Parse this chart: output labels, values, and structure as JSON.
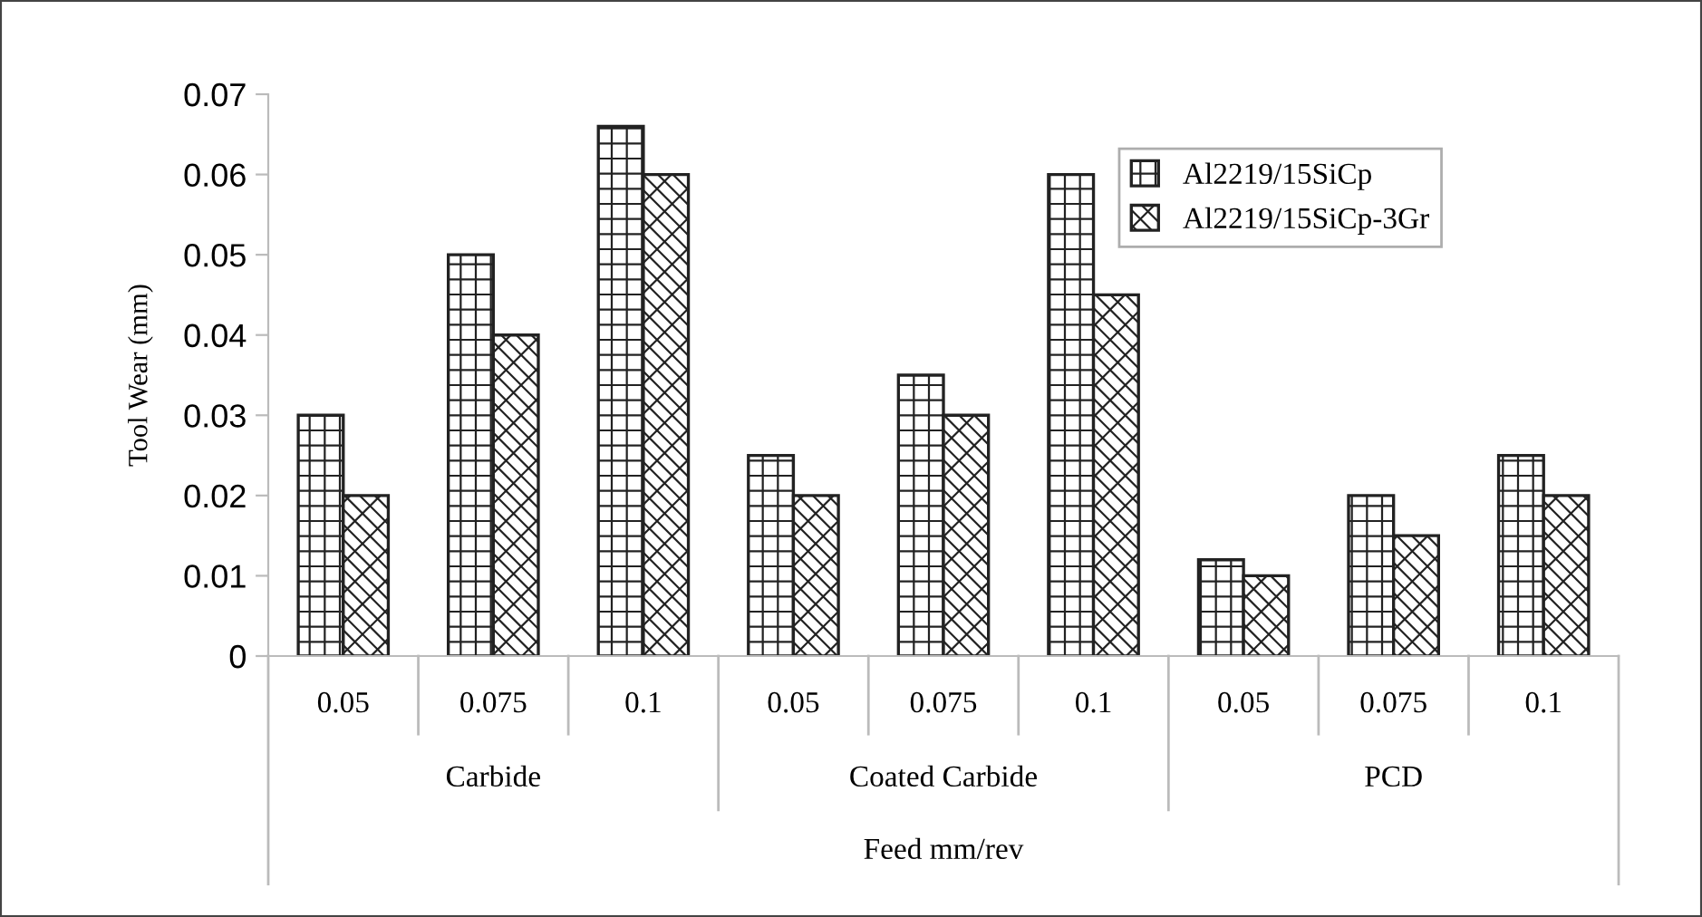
{
  "chart_data": {
    "type": "bar",
    "ylabel": "Tool Wear (mm)",
    "xlabel": "Feed mm/rev",
    "categories": [
      "0.05",
      "0.075",
      "0.1",
      "0.05",
      "0.075",
      "0.1",
      "0.05",
      "0.075",
      "0.1"
    ],
    "annotations": [
      "Carbide",
      "Coated Carbide",
      "PCD"
    ],
    "series": [
      {
        "name": "Al2219/15SiCp",
        "color": "#222222",
        "values": [
          0.03,
          0.05,
          0.066,
          0.025,
          0.035,
          0.06,
          0.012,
          0.02,
          0.025
        ]
      },
      {
        "name": "Al2219/15SiCp-3Gr",
        "color": "#222222",
        "values": [
          0.02,
          0.04,
          0.06,
          0.02,
          0.03,
          0.045,
          0.01,
          0.015,
          0.02
        ]
      }
    ],
    "ylim": [
      0,
      0.07
    ],
    "yticks": [
      0,
      0.01,
      0.02,
      0.03,
      0.04,
      0.05,
      0.06,
      0.07
    ],
    "legend": "top right",
    "grid": false
  }
}
